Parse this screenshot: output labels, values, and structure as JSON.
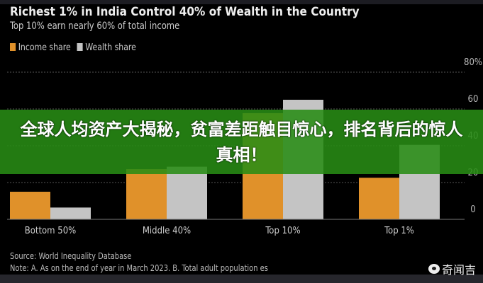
{
  "chart_data": {
    "type": "bar",
    "title": "Richest 1% in India Control 40% of Wealth in the Country",
    "subtitle": "Top 10% earn nearly 60% of total income",
    "categories": [
      "Bottom 50%",
      "Middle 40%",
      "Top 10%",
      "Top 1%"
    ],
    "series": [
      {
        "name": "Income share",
        "color": "#e0912a",
        "values": [
          15,
          27.3,
          57.7,
          22.6
        ]
      },
      {
        "name": "Wealth share",
        "color": "#c4c4c4",
        "values": [
          6.4,
          28.6,
          65,
          40.5
        ]
      }
    ],
    "yticks": [
      "0",
      "20",
      "40",
      "60",
      "80%"
    ],
    "ylim": [
      0,
      80
    ],
    "grid": true,
    "legend": "top-left",
    "yaxis_side": "right"
  },
  "banner": {
    "text": "全球人均资产大揭秘，贫富差距触目惊心，排名背后的惊人真相！"
  },
  "source": {
    "line1": "Source: World Inequality Database",
    "line2": "Note: A. As on the end of year in March 2023. B. Total adult population es"
  },
  "watermark": {
    "icon": "weibo-icon",
    "text": "奇闻吉"
  }
}
